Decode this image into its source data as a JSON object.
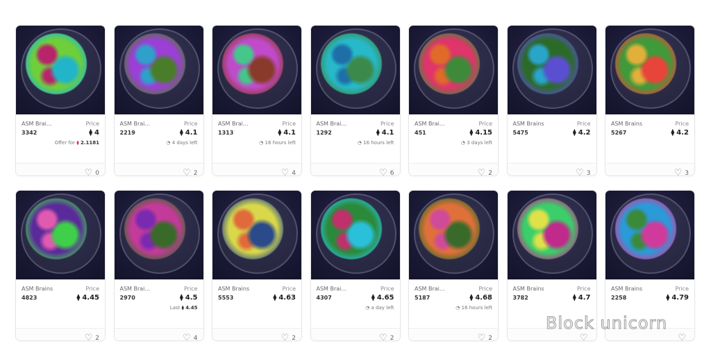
{
  "price_label": "Price",
  "currency_icon": "ethereum-icon",
  "like_icon": "heart-icon",
  "cards": [
    {
      "name": "ASM Brai...",
      "id": "3342",
      "price": "4",
      "sub_prefix": "Offer for",
      "sub_value": "2.1181",
      "sub_icon": "weth-icon",
      "likes": "0",
      "colors": [
        "#6fcf3a",
        "#22b5c9",
        "#b8246a"
      ]
    },
    {
      "name": "ASM Brai...",
      "id": "2219",
      "price": "4.1",
      "sub": "4 days left",
      "sub_icon": "clock-icon",
      "likes": "2",
      "colors": [
        "#9b3fd6",
        "#4a7d2a",
        "#2fa0c9"
      ]
    },
    {
      "name": "ASM Brai...",
      "id": "1313",
      "price": "4.1",
      "sub": "16 hours left",
      "sub_icon": "clock-icon",
      "likes": "4",
      "colors": [
        "#c04ac9",
        "#8a3a2a",
        "#46c68a"
      ]
    },
    {
      "name": "ASM Brai...",
      "id": "1292",
      "price": "4.1",
      "sub": "16 hours left",
      "sub_icon": "clock-icon",
      "likes": "6",
      "colors": [
        "#27b9c9",
        "#3c8a4a",
        "#1e6fa8"
      ]
    },
    {
      "name": "ASM Brai...",
      "id": "451",
      "price": "4.15",
      "sub": "3 days left",
      "sub_icon": "clock-icon",
      "likes": "2",
      "colors": [
        "#e0346a",
        "#3f8a3a",
        "#e06a2a"
      ]
    },
    {
      "name": "ASM Brains",
      "id": "5475",
      "price": "4.2",
      "likes": "3",
      "colors": [
        "#2c6a2a",
        "#5a4fd0",
        "#29a5c9"
      ]
    },
    {
      "name": "ASM Brains",
      "id": "5267",
      "price": "4.2",
      "likes": "3",
      "colors": [
        "#3f9a3a",
        "#e8443a",
        "#e0b03a"
      ]
    },
    {
      "name": "ASM Brains",
      "id": "4823",
      "price": "4.45",
      "likes": "2",
      "colors": [
        "#5a2a9a",
        "#3fcf4a",
        "#e05ab0"
      ]
    },
    {
      "name": "ASM Brai...",
      "id": "2970",
      "price": "4.5",
      "sub_prefix": "Last",
      "sub_value": "4.45",
      "sub_icon": "ethereum-icon",
      "likes": "4",
      "colors": [
        "#c43a9a",
        "#3a6a2a",
        "#7a2ab0"
      ]
    },
    {
      "name": "ASM Brains",
      "id": "5553",
      "price": "4.63",
      "likes": "2",
      "colors": [
        "#d8d84a",
        "#2a4a8a",
        "#e06a3a"
      ]
    },
    {
      "name": "ASM Brai...",
      "id": "4307",
      "price": "4.65",
      "sub": "a day left",
      "sub_icon": "clock-icon",
      "likes": "2",
      "colors": [
        "#2a8a3a",
        "#2ac0d9",
        "#c0306a"
      ]
    },
    {
      "name": "ASM Brai...",
      "id": "5187",
      "price": "4.68",
      "sub": "16 hours left",
      "sub_icon": "clock-icon",
      "likes": "2",
      "colors": [
        "#e0703a",
        "#3a6a2a",
        "#d04a9a"
      ]
    },
    {
      "name": "ASM Brains",
      "id": "3782",
      "price": "4.7",
      "likes": "",
      "colors": [
        "#3acf6a",
        "#c02a8a",
        "#e0e04a"
      ]
    },
    {
      "name": "ASM Brains",
      "id": "2258",
      "price": "4.79",
      "likes": "",
      "colors": [
        "#2a9ad9",
        "#d03a9a",
        "#3a8a3a"
      ]
    }
  ],
  "watermark": "Block unicorn"
}
